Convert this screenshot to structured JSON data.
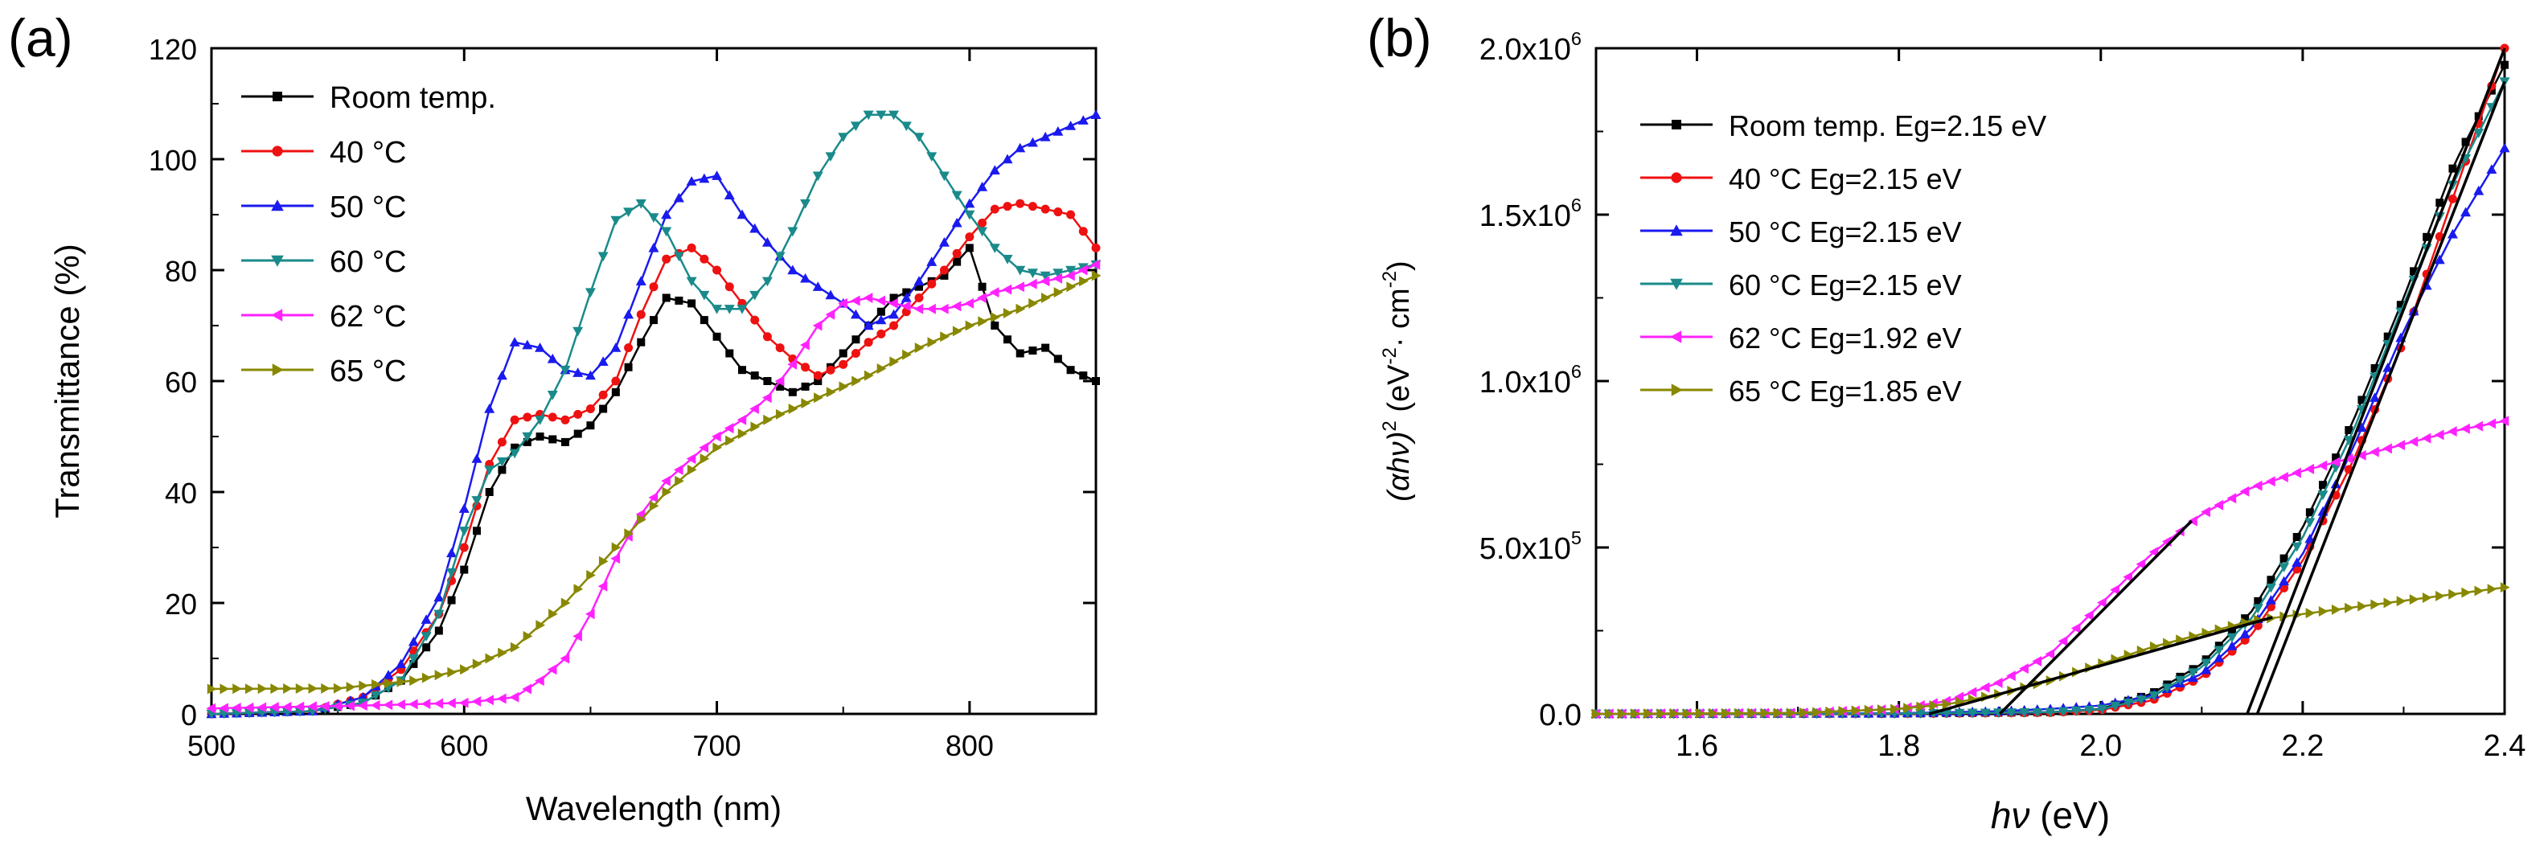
{
  "figure": {
    "panel_a_label": "(a)",
    "panel_b_label": "(b)"
  },
  "chart_data": [
    {
      "type": "line",
      "panel": "(a)",
      "title": "",
      "xlabel": "Wavelength (nm)",
      "ylabel": "Transmittance (%)",
      "xlim": [
        500,
        850
      ],
      "ylim": [
        0,
        120
      ],
      "xticks": [
        500,
        600,
        700,
        800
      ],
      "yticks": [
        0,
        20,
        40,
        60,
        80,
        100,
        120
      ],
      "xtick_labels": [
        "500",
        "600",
        "700",
        "800"
      ],
      "ytick_labels": [
        "0",
        "20",
        "40",
        "60",
        "80",
        "100",
        "120"
      ],
      "legend_position": "top-left",
      "series": [
        {
          "name": "Room temp.",
          "legend_text": "Room temp.",
          "color": "#000000",
          "marker": "square",
          "x": [
            500,
            540,
            560,
            575,
            590,
            600,
            610,
            620,
            630,
            640,
            650,
            660,
            670,
            680,
            690,
            700,
            710,
            720,
            730,
            740,
            750,
            760,
            770,
            780,
            790,
            800,
            810,
            820,
            830,
            840,
            850
          ],
          "y": [
            0,
            0.5,
            2,
            6,
            15,
            26,
            40,
            48,
            50,
            49,
            52,
            58,
            67,
            75,
            74,
            68,
            62,
            60,
            58,
            60,
            65,
            70,
            75,
            77,
            79,
            84,
            70,
            65,
            66,
            62,
            60
          ]
        },
        {
          "name": "40 °C",
          "legend_text": "40 °C",
          "color": "#ee1111",
          "marker": "circle",
          "x": [
            500,
            540,
            560,
            575,
            590,
            600,
            610,
            620,
            630,
            640,
            650,
            660,
            670,
            680,
            690,
            700,
            710,
            720,
            730,
            740,
            750,
            760,
            770,
            780,
            790,
            800,
            810,
            820,
            830,
            840,
            850
          ],
          "y": [
            0,
            0.5,
            3,
            8,
            18,
            30,
            45,
            53,
            54,
            53,
            55,
            60,
            72,
            82,
            84,
            80,
            74,
            68,
            64,
            61,
            63,
            67,
            70,
            75,
            80,
            86,
            91,
            92,
            91,
            90,
            84
          ]
        },
        {
          "name": "50 °C",
          "legend_text": "50 °C",
          "color": "#1a1aee",
          "marker": "triangle-up",
          "x": [
            500,
            540,
            560,
            575,
            590,
            600,
            610,
            620,
            630,
            640,
            650,
            660,
            670,
            680,
            690,
            700,
            710,
            720,
            730,
            740,
            750,
            760,
            770,
            780,
            790,
            800,
            810,
            820,
            830,
            840,
            850
          ],
          "y": [
            0,
            0.5,
            3,
            9,
            21,
            37,
            55,
            67,
            66,
            62,
            61,
            66,
            78,
            90,
            96,
            97,
            90,
            85,
            80,
            77,
            74,
            70,
            72,
            78,
            85,
            92,
            98,
            102,
            104,
            106,
            108
          ]
        },
        {
          "name": "60 °C",
          "legend_text": "60 °C",
          "color": "#1a8a8a",
          "marker": "triangle-down",
          "x": [
            500,
            540,
            560,
            575,
            590,
            600,
            610,
            620,
            630,
            640,
            650,
            660,
            670,
            680,
            690,
            700,
            710,
            720,
            730,
            740,
            750,
            760,
            770,
            780,
            790,
            800,
            810,
            820,
            830,
            840,
            850
          ],
          "y": [
            0,
            0.5,
            2,
            6,
            18,
            33,
            44,
            47,
            53,
            62,
            76,
            89,
            92,
            87,
            78,
            73,
            73,
            78,
            87,
            97,
            104,
            108,
            108,
            104,
            97,
            90,
            84,
            80,
            79,
            80,
            81
          ]
        },
        {
          "name": "62 °C",
          "legend_text": "62 °C",
          "color": "#ff22ff",
          "marker": "triangle-left",
          "x": [
            500,
            560,
            600,
            620,
            630,
            640,
            650,
            660,
            670,
            680,
            690,
            700,
            710,
            720,
            730,
            740,
            750,
            760,
            770,
            780,
            790,
            800,
            810,
            820,
            830,
            840,
            850
          ],
          "y": [
            1,
            1.5,
            2,
            3,
            6,
            10,
            18,
            28,
            36,
            42,
            46,
            50,
            53,
            57,
            63,
            70,
            74,
            75,
            74,
            73,
            73,
            74,
            76,
            77,
            78,
            79,
            81
          ]
        },
        {
          "name": "65 °C",
          "legend_text": "65 °C",
          "color": "#888800",
          "marker": "triangle-right",
          "x": [
            500,
            550,
            580,
            600,
            620,
            640,
            660,
            680,
            700,
            720,
            740,
            760,
            780,
            800,
            820,
            840,
            850
          ],
          "y": [
            4.5,
            4.6,
            6,
            8,
            12,
            20,
            30,
            40,
            48,
            53,
            57,
            61,
            66,
            70,
            73,
            77,
            79
          ]
        }
      ]
    },
    {
      "type": "line",
      "panel": "(b)",
      "title": "",
      "xlabel_italic": "hν",
      "xlabel_rest": " (eV)",
      "ylabel_prefix": "(αhν)",
      "ylabel_sup": "2",
      "ylabel_units": " (eV",
      "ylabel_units_sup": "-2",
      "ylabel_units_mid": "· cm",
      "ylabel_units_sup2": "-2",
      "ylabel_units_end": ")",
      "xlim": [
        1.5,
        2.4
      ],
      "ylim": [
        0,
        2000000
      ],
      "xticks": [
        1.6,
        1.8,
        2.0,
        2.2,
        2.4
      ],
      "xtick_labels": [
        "1.6",
        "1.8",
        "2.0",
        "2.2",
        "2.4"
      ],
      "yticks": [
        0,
        500000,
        1000000,
        1500000,
        2000000
      ],
      "ytick_labels": [
        {
          "base": "0.0",
          "sup": ""
        },
        {
          "base": "5.0x10",
          "sup": "5"
        },
        {
          "base": "1.0x10",
          "sup": "6"
        },
        {
          "base": "1.5x10",
          "sup": "6"
        },
        {
          "base": "2.0x10",
          "sup": "6"
        }
      ],
      "legend_position": "top-left",
      "series": [
        {
          "name": "Room temp.",
          "legend_text": "Room temp. Eg=2.15 eV",
          "color": "#000000",
          "marker": "square",
          "x": [
            1.5,
            1.8,
            1.95,
            2.0,
            2.05,
            2.1,
            2.15,
            2.2,
            2.25,
            2.3,
            2.35,
            2.4
          ],
          "y": [
            0,
            1000,
            5000,
            15000,
            60000,
            150000,
            310000,
            560000,
            880000,
            1250000,
            1650000,
            1950000
          ]
        },
        {
          "name": "40 °C",
          "legend_text": "40 °C Eg=2.15 eV",
          "color": "#ee1111",
          "marker": "circle",
          "x": [
            1.5,
            1.8,
            1.95,
            2.0,
            2.05,
            2.1,
            2.15,
            2.2,
            2.25,
            2.3,
            2.35,
            2.4
          ],
          "y": [
            0,
            1000,
            4000,
            12000,
            40000,
            110000,
            240000,
            460000,
            760000,
            1120000,
            1560000,
            2000000
          ]
        },
        {
          "name": "50 °C",
          "legend_text": "50 °C Eg=2.15 eV",
          "color": "#1a1aee",
          "marker": "triangle-up",
          "x": [
            1.5,
            1.8,
            1.9,
            1.95,
            2.0,
            2.05,
            2.1,
            2.15,
            2.2,
            2.25,
            2.3,
            2.35,
            2.4
          ],
          "y": [
            0,
            2000,
            8000,
            15000,
            25000,
            55000,
            120000,
            260000,
            480000,
            800000,
            1150000,
            1450000,
            1700000
          ]
        },
        {
          "name": "60 °C",
          "legend_text": "60 °C Eg=2.15 eV",
          "color": "#1a8a8a",
          "marker": "triangle-down",
          "x": [
            1.5,
            1.8,
            1.95,
            2.0,
            2.05,
            2.1,
            2.15,
            2.2,
            2.25,
            2.3,
            2.35,
            2.4
          ],
          "y": [
            0,
            1000,
            5000,
            14000,
            50000,
            140000,
            290000,
            530000,
            850000,
            1230000,
            1600000,
            1900000
          ]
        },
        {
          "name": "62 °C",
          "legend_text": "62 °C Eg=1.92 eV",
          "color": "#ff22ff",
          "marker": "triangle-left",
          "x": [
            1.5,
            1.7,
            1.8,
            1.85,
            1.9,
            1.95,
            2.0,
            2.05,
            2.1,
            2.15,
            2.2,
            2.25,
            2.3,
            2.35,
            2.4
          ],
          "y": [
            0,
            3000,
            15000,
            40000,
            95000,
            180000,
            330000,
            480000,
            600000,
            680000,
            730000,
            770000,
            810000,
            850000,
            880000
          ]
        },
        {
          "name": "65 °C",
          "legend_text": "65 °C Eg=1.85 eV",
          "color": "#888800",
          "marker": "triangle-right",
          "x": [
            1.5,
            1.7,
            1.8,
            1.85,
            1.9,
            1.95,
            2.0,
            2.05,
            2.1,
            2.15,
            2.2,
            2.25,
            2.3,
            2.35,
            2.4
          ],
          "y": [
            0,
            3000,
            15000,
            30000,
            60000,
            100000,
            150000,
            200000,
            240000,
            280000,
            300000,
            320000,
            340000,
            360000,
            380000
          ]
        }
      ],
      "fit_lines": [
        {
          "name": "fit-62C",
          "x": [
            1.9,
            2.09
          ],
          "y": [
            0,
            580000
          ]
        },
        {
          "name": "fit-65C",
          "x": [
            1.83,
            2.17
          ],
          "y": [
            0,
            290000
          ]
        },
        {
          "name": "fit-steep-1",
          "x": [
            2.145,
            2.4
          ],
          "y": [
            0,
            2000000
          ]
        },
        {
          "name": "fit-steep-2",
          "x": [
            2.155,
            2.4
          ],
          "y": [
            0,
            1900000
          ]
        }
      ]
    }
  ]
}
